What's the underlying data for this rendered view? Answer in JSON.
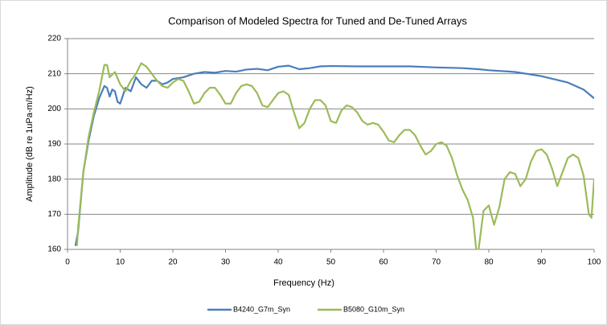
{
  "chart_data": {
    "type": "line",
    "title": "Comparison of Modeled Spectra for Tuned and De-Tuned Arrays",
    "x_label": "Frequency (Hz)",
    "y_label": "Amplitude (dB re 1uPa-m/Hz)",
    "xlim": [
      0,
      100
    ],
    "xticks": [
      0,
      10,
      20,
      30,
      40,
      50,
      60,
      70,
      80,
      90,
      100
    ],
    "ylim": [
      160,
      220
    ],
    "yticks": [
      160,
      170,
      180,
      190,
      200,
      210,
      220
    ],
    "grid": true,
    "legend": "bottom",
    "series": [
      {
        "name": "B4240_G7m_Syn",
        "color": "#4a7ebb",
        "x": [
          1.5,
          2,
          3,
          4,
          5,
          6,
          7,
          7.5,
          8,
          8.5,
          9,
          9.5,
          10,
          11,
          12,
          13,
          14,
          15,
          16,
          17,
          18,
          19,
          20,
          22,
          24,
          26,
          28,
          30,
          32,
          34,
          36,
          38,
          40,
          42,
          44,
          46,
          48,
          50,
          55,
          60,
          65,
          70,
          75,
          78,
          80,
          85,
          90,
          95,
          98,
          100
        ],
        "values": [
          161,
          165,
          182,
          191,
          198,
          203,
          206.5,
          206,
          203.5,
          205.5,
          205,
          202,
          201.5,
          206,
          205,
          209,
          207,
          206,
          208,
          208,
          207,
          207.5,
          208.5,
          209,
          210,
          210.5,
          210.3,
          210.8,
          210.6,
          211.2,
          211.4,
          211,
          212,
          212.3,
          211.3,
          211.6,
          212.1,
          212.2,
          212.1,
          212.1,
          212.1,
          211.8,
          211.6,
          211.3,
          211,
          210.5,
          209.3,
          207.5,
          205.5,
          203
        ]
      },
      {
        "name": "B5080_G10m_Syn",
        "color": "#9bbb59",
        "x": [
          1.8,
          2,
          3,
          4,
          5,
          6,
          7,
          7.5,
          8,
          9,
          10,
          11,
          12,
          13,
          14,
          15,
          16,
          17,
          18,
          19,
          20,
          21,
          22,
          23,
          24,
          25,
          26,
          27,
          28,
          29,
          30,
          31,
          32,
          33,
          34,
          35,
          36,
          37,
          38,
          39,
          40,
          41,
          42,
          43,
          44,
          45,
          46,
          47,
          48,
          49,
          50,
          51,
          52,
          53,
          54,
          55,
          56,
          57,
          58,
          59,
          60,
          61,
          62,
          63,
          64,
          65,
          66,
          67,
          68,
          69,
          70,
          71,
          72,
          73,
          74,
          75,
          76,
          77,
          77.8,
          79,
          80,
          81,
          82,
          83,
          84,
          85,
          86,
          87,
          88,
          89,
          90,
          91,
          92,
          93,
          94,
          95,
          96,
          97,
          98,
          99,
          99.5,
          100
        ],
        "values": [
          161,
          166,
          182,
          192,
          199,
          205,
          212.5,
          212.5,
          209,
          210.5,
          207,
          205,
          208,
          210,
          213,
          212,
          210,
          208,
          206.5,
          206,
          207.5,
          208.5,
          208,
          205,
          201.5,
          202,
          204.5,
          206,
          206,
          204,
          201.5,
          201.5,
          204.5,
          206.5,
          207,
          206.5,
          204.5,
          201,
          200.5,
          202.5,
          204.5,
          205,
          204,
          199,
          194.5,
          196,
          200,
          202.5,
          202.5,
          201,
          196.5,
          196,
          199.5,
          201,
          200.5,
          199,
          196.5,
          195.5,
          196,
          195.5,
          193.5,
          191,
          190.5,
          192.5,
          194,
          194,
          192.5,
          189.5,
          187,
          188,
          190,
          190.5,
          189.5,
          186,
          181,
          177,
          174,
          169,
          157,
          171,
          172.5,
          167,
          172,
          180,
          182,
          181.5,
          178,
          180,
          185,
          188,
          188.5,
          187,
          183,
          178,
          182,
          186,
          187,
          186,
          181,
          170,
          169,
          180
        ]
      }
    ]
  }
}
